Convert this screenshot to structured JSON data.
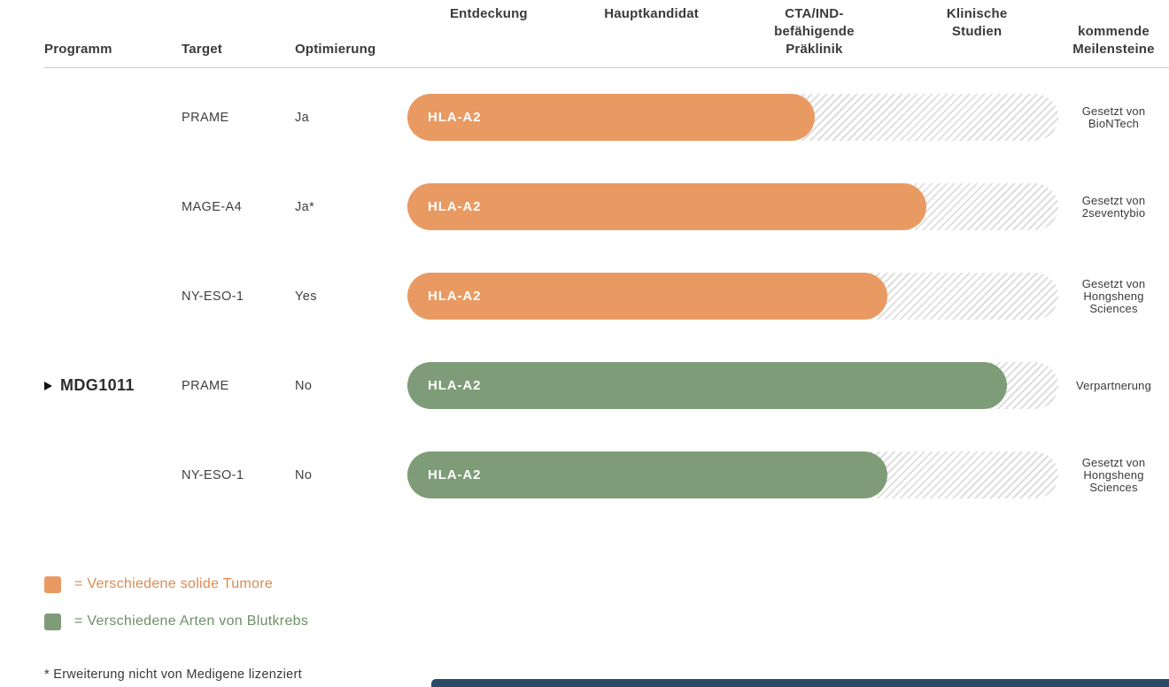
{
  "columns": {
    "programm": "Programm",
    "target": "Target",
    "optimierung": "Optimierung",
    "phases": [
      "Entdeckung",
      "Hauptkandidat",
      "CTA/IND-\nbefähigende\nPräklinik",
      "Klinische\nStudien"
    ],
    "milestones": "kommende\nMeilensteine"
  },
  "colors": {
    "solid": "#E99A62",
    "blood": "#7E9C77",
    "hatch": "#DEDEDE",
    "bottom_bar": "#2B4A68"
  },
  "rows": [
    {
      "program": "",
      "target": "PRAME",
      "optimierung": "Ja",
      "bar_label": "HLA-A2",
      "category": "solid",
      "progress_pct": 62.6,
      "milestone": "Gesetzt von\nBioNTech"
    },
    {
      "program": "",
      "target": "MAGE-A4",
      "optimierung": "Ja*",
      "bar_label": "HLA-A2",
      "category": "solid",
      "progress_pct": 79.7,
      "milestone": "Gesetzt von\n2seventybio"
    },
    {
      "program": "",
      "target": "NY-ESO-1",
      "optimierung": "Yes",
      "bar_label": "HLA-A2",
      "category": "solid",
      "progress_pct": 73.8,
      "milestone": "Gesetzt von\nHongsheng\nSciences"
    },
    {
      "program": "MDG1011",
      "target": "PRAME",
      "optimierung": "No",
      "bar_label": "HLA-A2",
      "category": "blood",
      "progress_pct": 92.1,
      "milestone": "Verpartnerung"
    },
    {
      "program": "",
      "target": "NY-ESO-1",
      "optimierung": "No",
      "bar_label": "HLA-A2",
      "category": "blood",
      "progress_pct": 73.8,
      "milestone": "Gesetzt von\nHongsheng\nSciences"
    }
  ],
  "legend": [
    {
      "label": "= Verschiedene solide Tumore",
      "category": "solid",
      "text_color": "#DB8A52"
    },
    {
      "label": "= Verschiedene Arten von Blutkrebs",
      "category": "blood",
      "text_color": "#6D9066"
    }
  ],
  "footnote": "* Erweiterung nicht von Medigene lizenziert",
  "chart_data": {
    "type": "bar",
    "orientation": "horizontal",
    "phase_axis": [
      "Entdeckung",
      "Hauptkandidat",
      "CTA/IND-befähigende Präklinik",
      "Klinische Studien"
    ],
    "phase_axis_range": [
      0,
      4
    ],
    "categories": [
      "PRAME (Optimierung: Ja)",
      "MAGE-A4 (Optimierung: Ja*)",
      "NY-ESO-1 (Optimierung: Yes)",
      "MDG1011 – PRAME (Optimierung: No)",
      "NY-ESO-1 (Optimierung: No)"
    ],
    "bar_labels": [
      "HLA-A2",
      "HLA-A2",
      "HLA-A2",
      "HLA-A2",
      "HLA-A2"
    ],
    "values_phase_units": [
      2.5,
      3.19,
      2.95,
      3.68,
      2.95
    ],
    "values_percent_of_track": [
      62.6,
      79.7,
      73.8,
      92.1,
      73.8
    ],
    "series_category": [
      "solide Tumore",
      "solide Tumore",
      "solide Tumore",
      "Blutkrebs",
      "Blutkrebs"
    ],
    "milestones": [
      "Gesetzt von BioNTech",
      "Gesetzt von 2seventybio",
      "Gesetzt von Hongsheng Sciences",
      "Verpartnerung",
      "Gesetzt von Hongsheng Sciences"
    ],
    "legend": [
      "Verschiedene solide Tumore",
      "Verschiedene Arten von Blutkrebs"
    ],
    "legend_position": "bottom-left",
    "grid": false
  }
}
